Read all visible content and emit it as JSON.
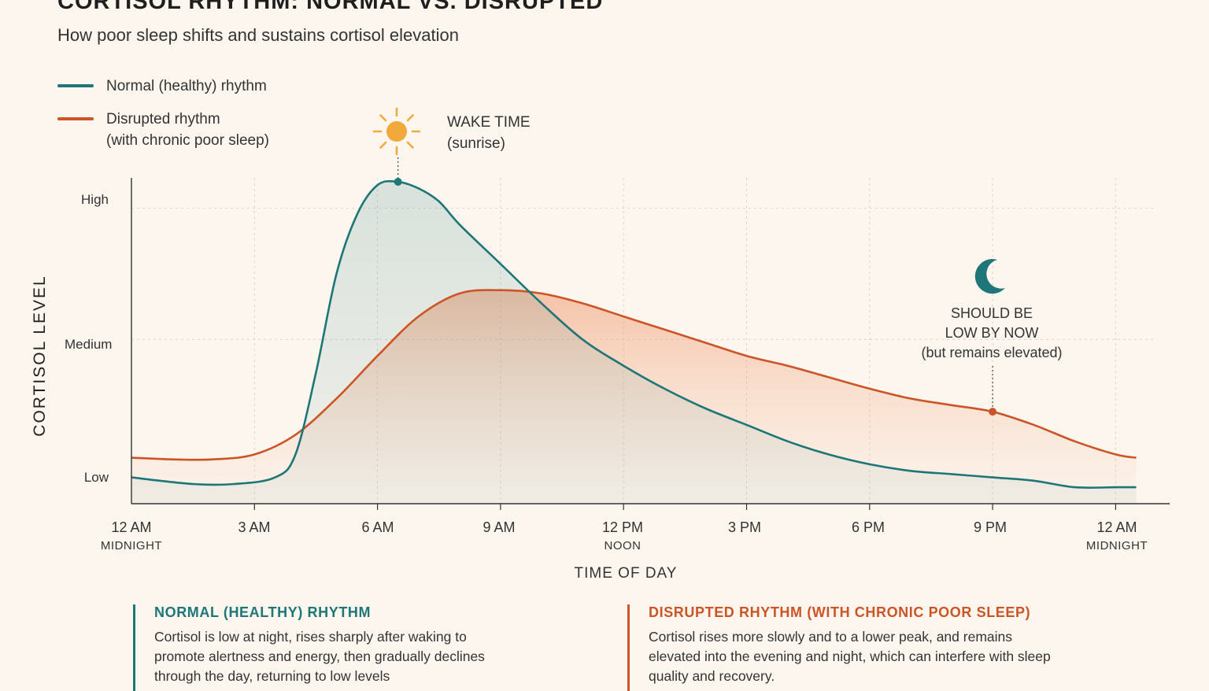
{
  "header": {
    "title": "CORTISOL RHYTHM: NORMAL VS. DISRUPTED",
    "subtitle": "How poor sleep shifts and sustains cortisol elevation"
  },
  "legend": {
    "normal": "Normal (healthy) rhythm",
    "disrupted_line1": "Disrupted rhythm",
    "disrupted_line2": "(with chronic poor sleep)"
  },
  "annotations": {
    "wake_line1": "WAKE TIME",
    "wake_line2": "(sunrise)",
    "evening_line1": "SHOULD BE",
    "evening_line2": "LOW BY NOW",
    "evening_line3": "(but remains elevated)"
  },
  "axes": {
    "ylabel": "CORTISOL LEVEL",
    "xlabel": "TIME OF DAY",
    "yticks": {
      "high": "High",
      "medium": "Medium",
      "low": "Low"
    },
    "xticks": [
      {
        "main": "12 AM",
        "sub": "MIDNIGHT"
      },
      {
        "main": "3 AM",
        "sub": ""
      },
      {
        "main": "6 AM",
        "sub": ""
      },
      {
        "main": "9 AM",
        "sub": ""
      },
      {
        "main": "12 PM",
        "sub": "NOON"
      },
      {
        "main": "3 PM",
        "sub": ""
      },
      {
        "main": "6 PM",
        "sub": ""
      },
      {
        "main": "9 PM",
        "sub": ""
      },
      {
        "main": "12 AM",
        "sub": "MIDNIGHT"
      }
    ]
  },
  "panels": {
    "normal": {
      "title": "NORMAL (HEALTHY) RHYTHM",
      "body": "Cortisol is low at night, rises sharply after waking to promote alertness and energy, then gradually declines through the day, returning to low levels"
    },
    "disrupted": {
      "title": "DISRUPTED RHYTHM (WITH CHRONIC POOR SLEEP)",
      "body": "Cortisol rises more slowly and to a lower peak, and remains elevated into the evening and night, which can interfere with sleep quality and recovery."
    }
  },
  "colors": {
    "normal": "#1e7678",
    "disrupted": "#cc5427",
    "sun": "#f2a93b"
  },
  "icons": {
    "sun": "sun-icon",
    "moon": "moon-icon"
  },
  "chart_data": {
    "type": "line",
    "xlabel": "TIME OF DAY",
    "ylabel": "CORTISOL LEVEL",
    "x_unit": "hours since midnight",
    "xlim": [
      0,
      24.5
    ],
    "ylim": [
      0,
      100
    ],
    "ytick_values": {
      "low": 10,
      "medium": 50,
      "high": 90
    },
    "grid": true,
    "legend_position": "top-left",
    "series": [
      {
        "name": "Normal (healthy) rhythm",
        "points": [
          [
            0,
            8
          ],
          [
            1.5,
            6
          ],
          [
            2.5,
            6
          ],
          [
            3.5,
            8
          ],
          [
            4,
            15
          ],
          [
            4.5,
            40
          ],
          [
            5,
            70
          ],
          [
            5.5,
            88
          ],
          [
            6,
            97
          ],
          [
            6.5,
            98
          ],
          [
            7,
            96
          ],
          [
            7.5,
            92
          ],
          [
            8,
            85
          ],
          [
            9,
            73
          ],
          [
            10,
            61
          ],
          [
            11,
            50
          ],
          [
            12,
            42
          ],
          [
            13,
            35
          ],
          [
            14,
            29
          ],
          [
            15,
            24
          ],
          [
            16,
            19
          ],
          [
            17,
            15
          ],
          [
            18,
            12
          ],
          [
            19,
            10
          ],
          [
            20,
            9
          ],
          [
            21,
            8
          ],
          [
            22,
            7
          ],
          [
            23,
            5
          ],
          [
            24,
            5
          ],
          [
            24.5,
            5
          ]
        ]
      },
      {
        "name": "Disrupted rhythm (with chronic poor sleep)",
        "points": [
          [
            0,
            14
          ],
          [
            1,
            13.5
          ],
          [
            2,
            13.5
          ],
          [
            3,
            15
          ],
          [
            4,
            21
          ],
          [
            5,
            32
          ],
          [
            6,
            45
          ],
          [
            7,
            57
          ],
          [
            8,
            64
          ],
          [
            9,
            65
          ],
          [
            10,
            64
          ],
          [
            11,
            61
          ],
          [
            12,
            57
          ],
          [
            13,
            53
          ],
          [
            14,
            49
          ],
          [
            15,
            45
          ],
          [
            16,
            42
          ],
          [
            17,
            38.5
          ],
          [
            18,
            35
          ],
          [
            19,
            32
          ],
          [
            20,
            30
          ],
          [
            21,
            28
          ],
          [
            22,
            24
          ],
          [
            23,
            19
          ],
          [
            24,
            15
          ],
          [
            24.5,
            14
          ]
        ]
      }
    ],
    "markers": [
      {
        "series": "Normal (healthy) rhythm",
        "x": 6.5,
        "y": 98,
        "label": "WAKE TIME (sunrise)"
      },
      {
        "series": "Disrupted rhythm (with chronic poor sleep)",
        "x": 21,
        "y": 28,
        "label": "SHOULD BE LOW BY NOW (but remains elevated)"
      }
    ]
  }
}
